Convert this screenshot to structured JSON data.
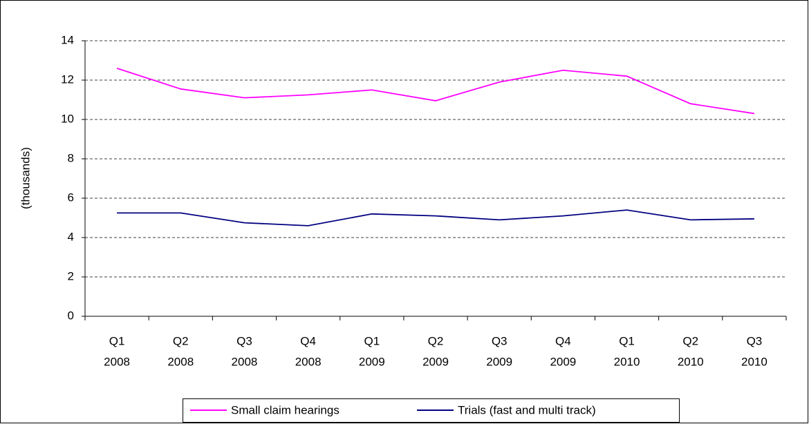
{
  "chart_data": {
    "type": "line",
    "y_label": "(thousands)",
    "categories": [
      [
        "Q1",
        "2008"
      ],
      [
        "Q2",
        "2008"
      ],
      [
        "Q3",
        "2008"
      ],
      [
        "Q4",
        "2008"
      ],
      [
        "Q1",
        "2009"
      ],
      [
        "Q2",
        "2009"
      ],
      [
        "Q3",
        "2009"
      ],
      [
        "Q4",
        "2009"
      ],
      [
        "Q1",
        "2010"
      ],
      [
        "Q2",
        "2010"
      ],
      [
        "Q3",
        "2010"
      ]
    ],
    "series": [
      {
        "name": "Small claim hearings",
        "color": "#ff00ff",
        "values": [
          12.6,
          11.55,
          11.1,
          11.25,
          11.5,
          10.95,
          11.9,
          12.5,
          12.2,
          10.8,
          10.3
        ]
      },
      {
        "name": "Trials (fast and multi track)",
        "color": "#000080",
        "values": [
          5.25,
          5.25,
          4.75,
          4.6,
          5.2,
          5.1,
          4.9,
          5.1,
          5.4,
          4.9,
          4.95
        ]
      }
    ],
    "ylim": [
      0,
      14
    ],
    "yticks": [
      0,
      2,
      4,
      6,
      8,
      10,
      12,
      14
    ],
    "grid": true
  }
}
